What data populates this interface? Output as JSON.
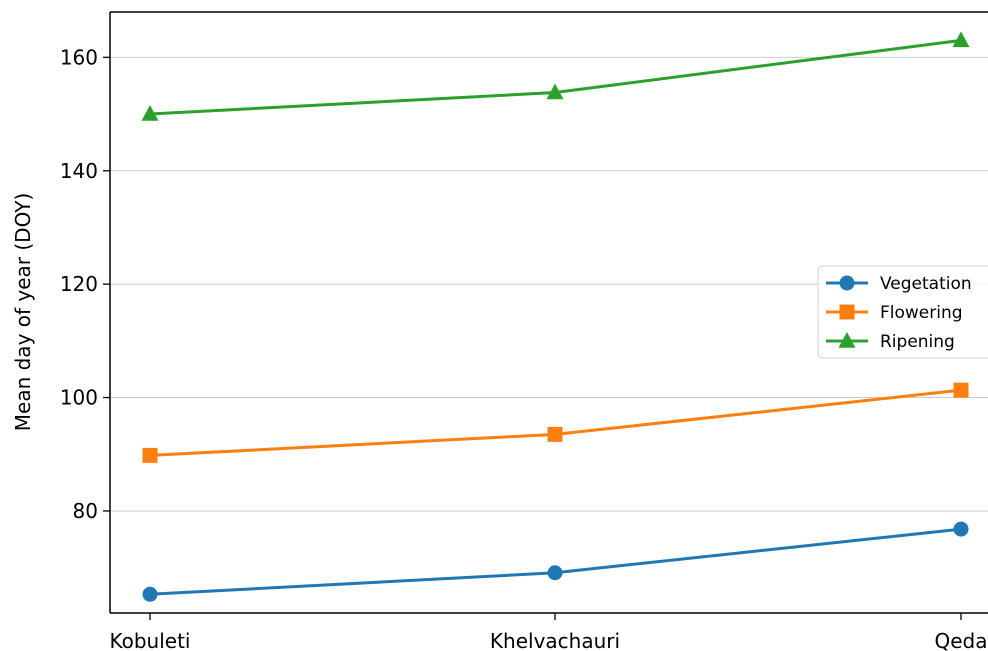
{
  "chart_data": {
    "type": "line",
    "title": "",
    "xlabel": "",
    "ylabel": "Mean day of year (DOY)",
    "categories": [
      "Kobuleti",
      "Khelvachauri",
      "Qeda"
    ],
    "yticks": [
      80,
      100,
      120,
      140,
      160
    ],
    "ylim": [
      62,
      168
    ],
    "grid": "horizontal",
    "legend_position": "right",
    "series": [
      {
        "name": "Vegetation",
        "values": [
          65.3,
          69.1,
          76.8
        ],
        "color": "#1f77b4",
        "marker": "circle"
      },
      {
        "name": "Flowering",
        "values": [
          89.8,
          93.5,
          101.3
        ],
        "color": "#ff7f0e",
        "marker": "square"
      },
      {
        "name": "Ripening",
        "values": [
          150.0,
          153.8,
          163.0
        ],
        "color": "#2ca02c",
        "marker": "triangle"
      }
    ]
  }
}
